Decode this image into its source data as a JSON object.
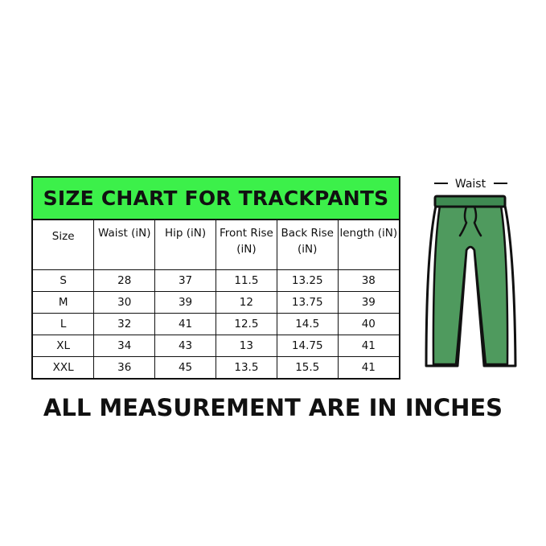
{
  "chart_data": {
    "type": "table",
    "title": "SIZE CHART FOR TRACKPANTS",
    "columns": [
      "Size",
      "Waist (iN)",
      "Hip (iN)",
      "Front Rise (iN)",
      "Back Rise (iN)",
      "length (iN)"
    ],
    "rows": [
      [
        "S",
        "28",
        "37",
        "11.5",
        "13.25",
        "38"
      ],
      [
        "M",
        "30",
        "39",
        "12",
        "13.75",
        "39"
      ],
      [
        "L",
        "32",
        "41",
        "12.5",
        "14.5",
        "40"
      ],
      [
        "XL",
        "34",
        "43",
        "13",
        "14.75",
        "41"
      ],
      [
        "XXL",
        "36",
        "45",
        "13.5",
        "15.5",
        "41"
      ]
    ]
  },
  "illustration": {
    "label": "Waist",
    "icon": "trackpants-icon",
    "pants_color": "#4f9a5e",
    "band_color": "#3f8a52"
  },
  "footer": "ALL MEASUREMENT ARE IN INCHES",
  "colors": {
    "title_bg": "#3cf04a",
    "border": "#111111"
  }
}
